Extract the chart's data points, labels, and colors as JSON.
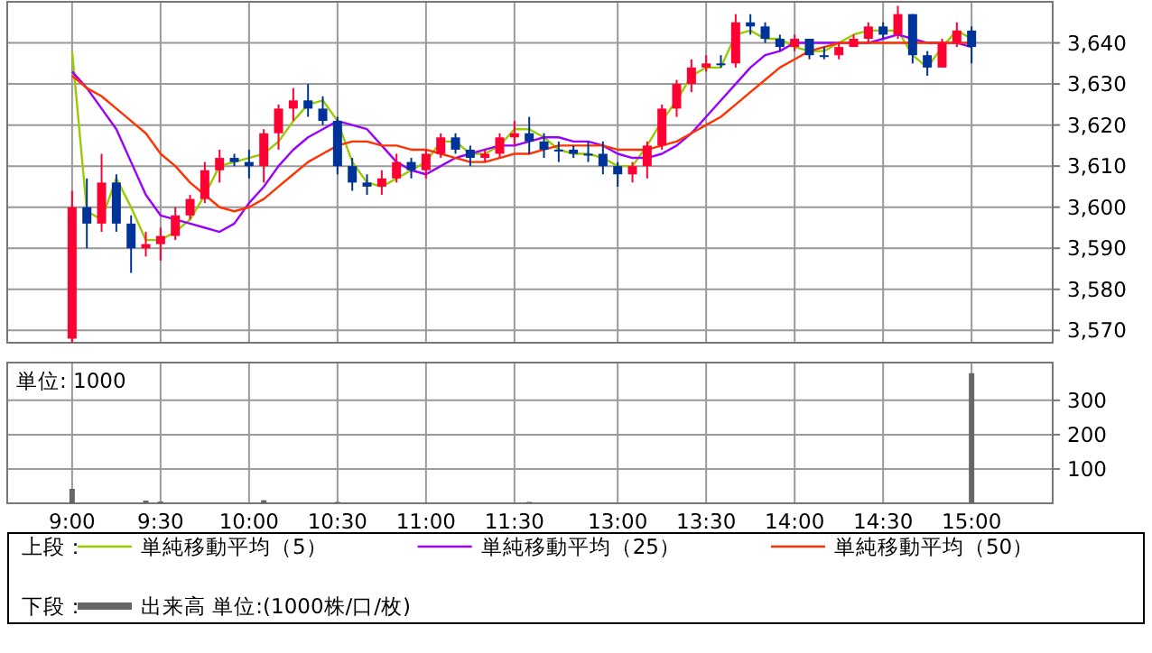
{
  "chart_data": [
    {
      "type": "candlestick",
      "legend_title": "上段：",
      "legend": "bottom",
      "grid": true,
      "tick_labels": "y",
      "categories": [
        null,
        null,
        null,
        null,
        null,
        null,
        null,
        null,
        null,
        null,
        null,
        null,
        null,
        null,
        null,
        null,
        null,
        null,
        null,
        null,
        null,
        null,
        null,
        null,
        null,
        null,
        null,
        null,
        null,
        null,
        null,
        null,
        null,
        null,
        null,
        null,
        null,
        null,
        null,
        null,
        null,
        null,
        null,
        null,
        null,
        null,
        null,
        null,
        null,
        null,
        null,
        null,
        null,
        null,
        null,
        null,
        null,
        null,
        null,
        null,
        null,
        null
      ],
      "ohlc": [
        [
          3568,
          3604,
          3567,
          3600
        ],
        [
          3600,
          3607,
          3590,
          3596
        ],
        [
          3596,
          3613,
          3594,
          3606
        ],
        [
          3606,
          3608,
          3594,
          3596
        ],
        [
          3596,
          3598,
          3584,
          3590
        ],
        [
          3590,
          3594,
          3588,
          3591
        ],
        [
          3591,
          3595,
          3587,
          3593
        ],
        [
          3593,
          3600,
          3592,
          3598
        ],
        [
          3598,
          3603,
          3597,
          3602
        ],
        [
          3602,
          3611,
          3601,
          3609
        ],
        [
          3609,
          3614,
          3606,
          3612
        ],
        [
          3612,
          3613,
          3610,
          3611
        ],
        [
          3611,
          3614,
          3607,
          3610
        ],
        [
          3610,
          3619,
          3606,
          3618
        ],
        [
          3618,
          3625,
          3614,
          3624
        ],
        [
          3624,
          3629,
          3621,
          3626
        ],
        [
          3626,
          3630,
          3622,
          3624
        ],
        [
          3624,
          3627,
          3620,
          3621
        ],
        [
          3621,
          3622,
          3608,
          3610
        ],
        [
          3610,
          3612,
          3604,
          3606
        ],
        [
          3606,
          3608,
          3603,
          3605
        ],
        [
          3605,
          3609,
          3603,
          3607
        ],
        [
          3607,
          3613,
          3606,
          3611
        ],
        [
          3611,
          3612,
          3607,
          3609
        ],
        [
          3609,
          3614,
          3607,
          3613
        ],
        [
          3613,
          3618,
          3612,
          3617
        ],
        [
          3617,
          3618,
          3613,
          3614
        ],
        [
          3614,
          3615,
          3610,
          3612
        ],
        [
          3612,
          3614,
          3611,
          3613
        ],
        [
          3613,
          3618,
          3612,
          3617
        ],
        [
          3617,
          3621,
          3615,
          3618
        ],
        [
          3618,
          3622,
          3613,
          3616
        ],
        [
          3616,
          3618,
          3612,
          3614
        ],
        [
          3614,
          3616,
          3611,
          3614
        ],
        [
          3614,
          3615,
          3612,
          3613
        ],
        [
          3613,
          3616,
          3611,
          3613
        ],
        [
          3613,
          3616,
          3608,
          3610
        ],
        [
          3610,
          3611,
          3605,
          3608
        ],
        [
          3608,
          3611,
          3606,
          3610
        ],
        [
          3610,
          3616,
          3607,
          3615
        ],
        [
          3615,
          3625,
          3614,
          3624
        ],
        [
          3624,
          3631,
          3622,
          3630
        ],
        [
          3630,
          3636,
          3628,
          3634
        ],
        [
          3634,
          3637,
          3633,
          3635
        ],
        [
          3635,
          3637,
          3634,
          3635
        ],
        [
          3635,
          3647,
          3634,
          3645
        ],
        [
          3645,
          3647,
          3642,
          3644
        ],
        [
          3644,
          3645,
          3640,
          3641
        ],
        [
          3641,
          3642,
          3638,
          3639
        ],
        [
          3639,
          3642,
          3638,
          3641
        ],
        [
          3641,
          3641,
          3636,
          3637
        ],
        [
          3637,
          3639,
          3636,
          3637
        ],
        [
          3637,
          3640,
          3636,
          3639
        ],
        [
          3639,
          3642,
          3639,
          3641
        ],
        [
          3641,
          3645,
          3640,
          3644
        ],
        [
          3644,
          3645,
          3641,
          3642
        ],
        [
          3642,
          3649,
          3641,
          3647
        ],
        [
          3647,
          3647,
          3635,
          3637
        ],
        [
          3637,
          3638,
          3632,
          3634
        ],
        [
          3634,
          3641,
          3634,
          3640
        ],
        [
          3640,
          3645,
          3639,
          3643
        ],
        [
          3643,
          3644,
          3635,
          3639
        ]
      ],
      "colors": [
        "#ff0033",
        "#003399",
        "#ff0033",
        "#003399",
        "#003399",
        "#ff0033",
        "#ff0033",
        "#ff0033",
        "#ff0033",
        "#ff0033",
        "#ff0033",
        "#003399",
        "#003399",
        "#ff0033",
        "#ff0033",
        "#ff0033",
        "#003399",
        "#003399",
        "#003399",
        "#003399",
        "#003399",
        "#ff0033",
        "#ff0033",
        "#003399",
        "#ff0033",
        "#ff0033",
        "#003399",
        "#003399",
        "#ff0033",
        "#ff0033",
        "#ff0033",
        "#003399",
        "#003399",
        "#003399",
        "#003399",
        "#003399",
        "#003399",
        "#003399",
        "#ff0033",
        "#ff0033",
        "#ff0033",
        "#ff0033",
        "#ff0033",
        "#ff0033",
        "#003399",
        "#ff0033",
        "#003399",
        "#003399",
        "#003399",
        "#ff0033",
        "#003399",
        "#003399",
        "#ff0033",
        "#ff0033",
        "#ff0033",
        "#003399",
        "#ff0033",
        "#003399",
        "#003399",
        "#ff0033",
        "#ff0033",
        "#003399"
      ],
      "series": [
        {
          "type": "line",
          "name": "単純移動平均（5）",
          "color": "#99cc00",
          "values": [
            3638,
            3599,
            3597,
            3607,
            3600,
            3592,
            3592,
            3594,
            3597,
            3603,
            3610,
            3611,
            3612,
            3613,
            3616,
            3621,
            3625,
            3626,
            3621,
            3611,
            3606,
            3605,
            3607,
            3609,
            3611,
            3616,
            3616,
            3613,
            3613,
            3615,
            3619,
            3619,
            3617,
            3614,
            3613,
            3613,
            3612,
            3610,
            3610,
            3615,
            3621,
            3626,
            3632,
            3634,
            3634,
            3642,
            3643,
            3641,
            3641,
            3639,
            3638,
            3638,
            3640,
            3642,
            3643,
            3643,
            3643,
            3637,
            3634,
            3639,
            3643,
            3641
          ]
        },
        {
          "type": "line",
          "name": "単純移動平均（25）",
          "color": "#9900ff",
          "values": [
            3633,
            3629,
            3624,
            3619,
            3611,
            3603,
            3598,
            3597,
            3596,
            3595,
            3594,
            3596,
            3601,
            3605,
            3610,
            3614,
            3617,
            3619,
            3621,
            3620,
            3619,
            3615,
            3611,
            3609,
            3608,
            3610,
            3612,
            3613,
            3614,
            3615,
            3615,
            3616,
            3617,
            3617,
            3616,
            3616,
            3615,
            3613,
            3612,
            3612,
            3613,
            3615,
            3618,
            3622,
            3626,
            3630,
            3634,
            3637,
            3638,
            3640,
            3640,
            3640,
            3640,
            3640,
            3640,
            3641,
            3642,
            3641,
            3640,
            3640,
            3640,
            3639
          ]
        },
        {
          "type": "line",
          "name": "単純移動平均（50）",
          "color": "#ff3300",
          "values": [
            3632,
            3629,
            3627,
            3624,
            3621,
            3618,
            3613,
            3610,
            3606,
            3603,
            3600,
            3599,
            3600,
            3602,
            3605,
            3608,
            3611,
            3613,
            3615,
            3616,
            3616,
            3615,
            3615,
            3614,
            3614,
            3613,
            3612,
            3611,
            3611,
            3612,
            3613,
            3613,
            3614,
            3615,
            3615,
            3615,
            3615,
            3614,
            3614,
            3614,
            3615,
            3616,
            3618,
            3620,
            3622,
            3625,
            3628,
            3631,
            3634,
            3636,
            3638,
            3639,
            3640,
            3640,
            3640,
            3640,
            3640,
            3640,
            3640,
            3640,
            3640,
            3640
          ]
        }
      ],
      "ylim": [
        3567,
        3650
      ],
      "yticks": [
        {
          "value": 3570,
          "label": "3,570"
        },
        {
          "value": 3580,
          "label": "3,580"
        },
        {
          "value": 3590,
          "label": "3,590"
        },
        {
          "value": 3600,
          "label": "3,600"
        },
        {
          "value": 3610,
          "label": "3,610"
        },
        {
          "value": 3620,
          "label": "3,620"
        },
        {
          "value": 3630,
          "label": "3,630"
        },
        {
          "value": 3640,
          "label": "3,640"
        }
      ]
    },
    {
      "type": "bar",
      "legend_title": "下段：",
      "legend": "bottom",
      "grid": true,
      "annotations": [
        "単位: 1000"
      ],
      "categories": [
        "9:00",
        null,
        null,
        null,
        null,
        null,
        "9:30",
        null,
        null,
        null,
        null,
        null,
        "10:00",
        null,
        null,
        null,
        null,
        null,
        "10:30",
        null,
        null,
        null,
        null,
        null,
        "11:00",
        null,
        null,
        null,
        null,
        null,
        "11:30",
        null,
        null,
        null,
        null,
        null,
        null,
        "13:00",
        null,
        null,
        null,
        null,
        null,
        "13:30",
        null,
        null,
        null,
        null,
        null,
        "14:00",
        null,
        null,
        null,
        null,
        null,
        "14:30",
        null,
        null,
        null,
        null,
        null,
        "15:00"
      ],
      "series": [
        {
          "name": "出来高 単位:(1000株/口/枚)",
          "color": "#666666",
          "values": [
            42,
            null,
            null,
            null,
            null,
            8,
            5,
            null,
            null,
            null,
            null,
            null,
            null,
            9,
            null,
            null,
            null,
            null,
            4,
            null,
            null,
            null,
            null,
            null,
            null,
            null,
            null,
            null,
            null,
            null,
            null,
            4,
            null,
            null,
            null,
            null,
            null,
            null,
            null,
            null,
            null,
            null,
            null,
            null,
            null,
            null,
            null,
            null,
            null,
            null,
            null,
            null,
            null,
            null,
            null,
            null,
            null,
            null,
            null,
            null,
            null,
            379
          ]
        }
      ],
      "ylim": [
        0,
        410
      ],
      "yticks": [
        100,
        200,
        300
      ]
    }
  ]
}
